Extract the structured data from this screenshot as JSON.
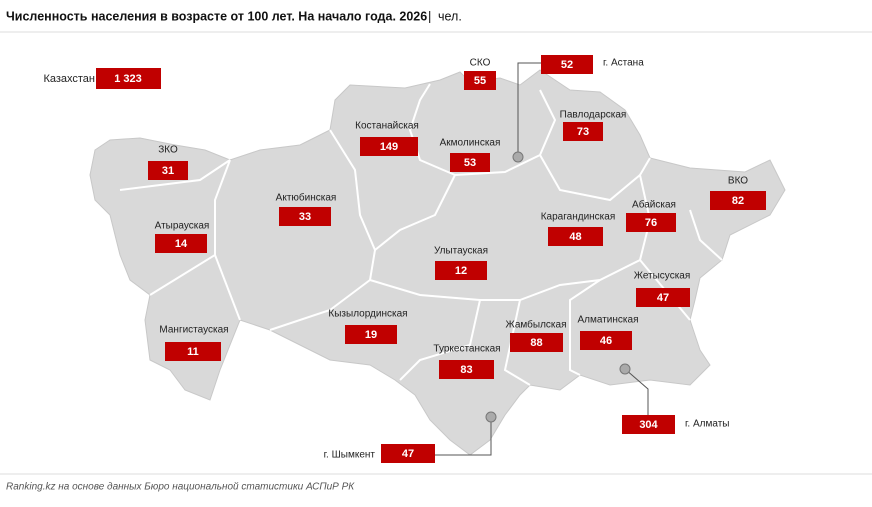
{
  "title": "Численность населения в возрасте от 100 лет. На начало года. 2026",
  "unit": "чел.",
  "total": {
    "label": "Казахстан",
    "value": "1 323"
  },
  "regions": [
    {
      "label": "СКО",
      "value": "55"
    },
    {
      "label": "г. Астана",
      "value": "52"
    },
    {
      "label": "Костанайская",
      "value": "149"
    },
    {
      "label": "Акмолинская",
      "value": "53"
    },
    {
      "label": "Павлодарская",
      "value": "73"
    },
    {
      "label": "ЗКО",
      "value": "31"
    },
    {
      "label": "Актюбинская",
      "value": "33"
    },
    {
      "label": "ВКО",
      "value": "82"
    },
    {
      "label": "Абайская",
      "value": "76"
    },
    {
      "label": "Атырауская",
      "value": "14"
    },
    {
      "label": "Карагандинская",
      "value": "48"
    },
    {
      "label": "Улытауская",
      "value": "12"
    },
    {
      "label": "Жетысуская",
      "value": "47"
    },
    {
      "label": "Кызылординская",
      "value": "19"
    },
    {
      "label": "Мангистауская",
      "value": "11"
    },
    {
      "label": "Жамбылская",
      "value": "88"
    },
    {
      "label": "Алматинская",
      "value": "46"
    },
    {
      "label": "Туркестанская",
      "value": "83"
    },
    {
      "label": "г. Алматы",
      "value": "304"
    },
    {
      "label": "г. Шымкент",
      "value": "47"
    }
  ],
  "source": "Ranking.kz на основе данных Бюро национальной статистики АСПиР РК"
}
